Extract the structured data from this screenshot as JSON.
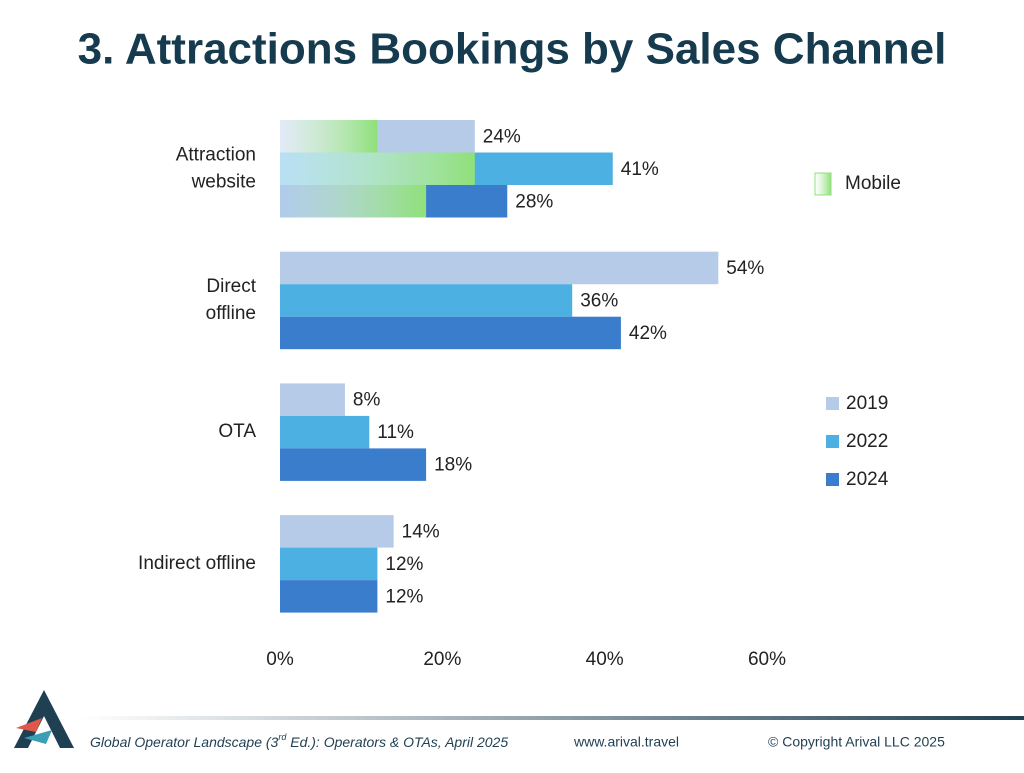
{
  "chart_data": {
    "type": "bar",
    "orientation": "horizontal",
    "title": "3. Attractions Bookings by Sales Channel",
    "categories": [
      [
        "Attraction",
        "website"
      ],
      [
        "Direct",
        "offline"
      ],
      [
        "OTA"
      ],
      [
        "Indirect offline"
      ]
    ],
    "series": [
      {
        "name": "2019",
        "color": "#b5cbe8",
        "values": [
          24,
          54,
          8,
          14
        ],
        "value_labels": [
          "24%",
          "54%",
          "8%",
          "14%"
        ]
      },
      {
        "name": "2022",
        "color": "#4db0e2",
        "values": [
          41,
          36,
          11,
          12
        ],
        "value_labels": [
          "41%",
          "36%",
          "11%",
          "12%"
        ]
      },
      {
        "name": "2024",
        "color": "#3b7dcd",
        "values": [
          28,
          42,
          18,
          12
        ],
        "value_labels": [
          "28%",
          "42%",
          "18%",
          "12%"
        ]
      }
    ],
    "overlay": {
      "name": "Mobile",
      "color": "#8fe07a",
      "values": [
        [
          12,
          24,
          18
        ],
        [
          null,
          null,
          null
        ],
        [
          null,
          null,
          null
        ],
        [
          null,
          null,
          null
        ]
      ]
    },
    "xlim": [
      0,
      60
    ],
    "xticks": [
      {
        "value": 0,
        "label": "0%"
      },
      {
        "value": 20,
        "label": "20%"
      },
      {
        "value": 40,
        "label": "40%"
      },
      {
        "value": 60,
        "label": "60%"
      }
    ]
  },
  "footer": {
    "source": [
      "Global Operator Landscape (3",
      "rd",
      " Ed.):  Operators & OTAs, April 2025"
    ],
    "website": "www.arival.travel",
    "copyright": "© Copyright Arival LLC 2025"
  }
}
